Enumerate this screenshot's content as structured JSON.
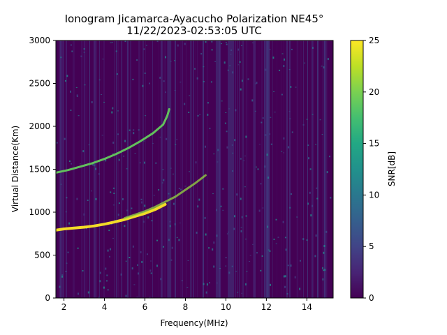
{
  "chart_data": {
    "type": "heatmap",
    "title": "Ionogram Jicamarca-Ayacucho Polarization NE45°",
    "subtitle": "11/22/2023-02:53:05 UTC",
    "xlabel": "Frequency(MHz)",
    "ylabel": "Virtual Distance(Km)",
    "xlim": [
      1.6,
      15.3
    ],
    "ylim": [
      0,
      3000
    ],
    "xticks": [
      2,
      4,
      6,
      8,
      10,
      12,
      14
    ],
    "yticks": [
      0,
      500,
      1000,
      1500,
      2000,
      2500,
      3000
    ],
    "colorbar": {
      "label": "SNR[dB]",
      "range": [
        0,
        25
      ],
      "ticks": [
        0,
        5,
        10,
        15,
        20,
        25
      ],
      "colormap": "viridis"
    },
    "traces": [
      {
        "points": [
          [
            1.6,
            790
          ],
          [
            2.0,
            805
          ],
          [
            2.5,
            815
          ],
          [
            3.0,
            825
          ],
          [
            3.5,
            840
          ],
          [
            4.0,
            860
          ],
          [
            4.5,
            885
          ],
          [
            5.0,
            915
          ],
          [
            5.5,
            950
          ],
          [
            6.0,
            985
          ],
          [
            6.5,
            1030
          ],
          [
            7.0,
            1090
          ]
        ],
        "snr": 25
      },
      {
        "points": [
          [
            5.0,
            930
          ],
          [
            5.5,
            970
          ],
          [
            6.0,
            1010
          ],
          [
            6.5,
            1060
          ],
          [
            7.0,
            1120
          ],
          [
            7.5,
            1180
          ],
          [
            8.0,
            1260
          ],
          [
            8.5,
            1340
          ],
          [
            9.0,
            1430
          ]
        ],
        "snr": 21
      },
      {
        "points": [
          [
            1.6,
            1460
          ],
          [
            2.2,
            1490
          ],
          [
            2.8,
            1530
          ],
          [
            3.4,
            1570
          ],
          [
            4.0,
            1620
          ],
          [
            4.6,
            1680
          ],
          [
            5.2,
            1750
          ],
          [
            5.8,
            1830
          ],
          [
            6.4,
            1920
          ],
          [
            6.9,
            2020
          ],
          [
            7.1,
            2120
          ],
          [
            7.2,
            2200
          ]
        ],
        "snr": 19
      }
    ]
  }
}
